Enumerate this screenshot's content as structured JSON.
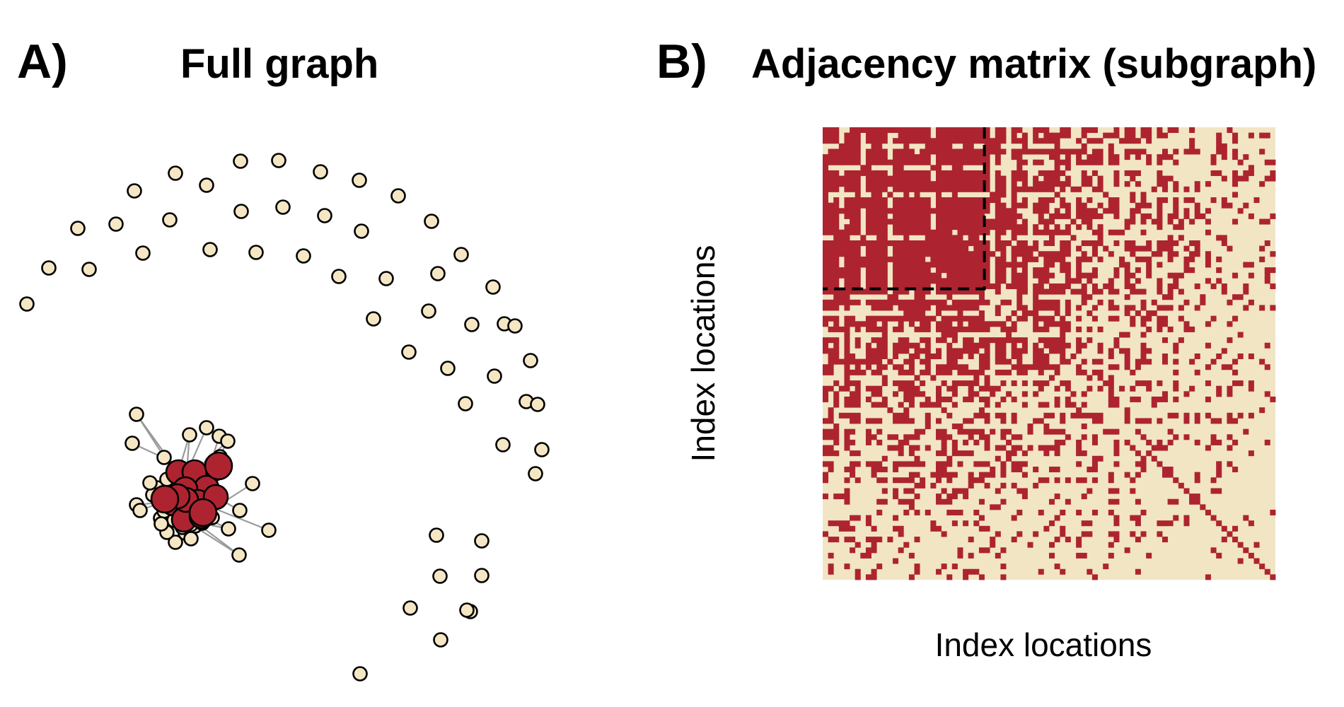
{
  "panel_a": {
    "letter": "A)",
    "title": "Full graph"
  },
  "panel_b": {
    "letter": "B)",
    "title": "Adjacency matrix (subgraph)",
    "xlabel": "Index locations",
    "ylabel": "Index locations"
  },
  "colors": {
    "node_core": "#ad2430",
    "node_periphery": "#f5e6c4",
    "node_outline": "#000000",
    "edge": "#9a9a9a",
    "matrix_filled": "#ad2430",
    "matrix_empty": "#f2e5c3",
    "highlight_box": "#000000"
  },
  "matrix": {
    "size": 84,
    "highlighted_block": 30
  }
}
